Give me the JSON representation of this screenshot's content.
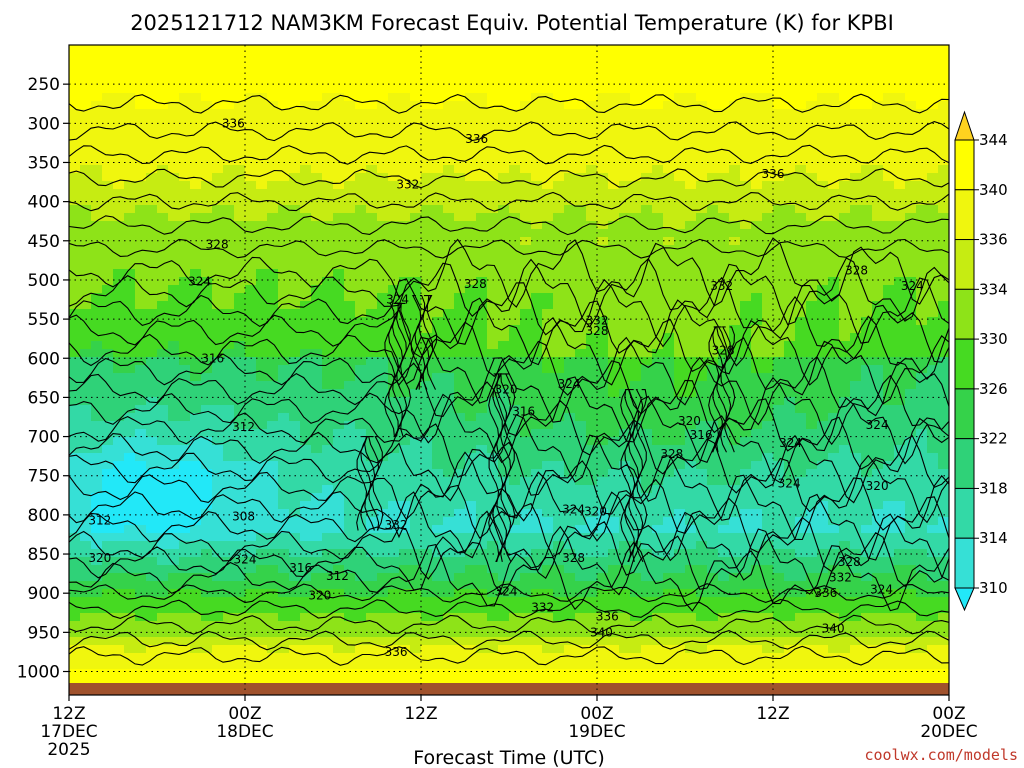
{
  "chart_data": {
    "type": "heatmap",
    "title": "2025121712 NAM3KM Forecast Equiv. Potential Temperature (K) for KPBI",
    "xlabel": "Forecast Time (UTC)",
    "ylabel": "",
    "x_ticks": [
      {
        "label": "12Z",
        "sub": "17DEC",
        "sub2": "2025",
        "hour": 0
      },
      {
        "label": "00Z",
        "sub": "18DEC",
        "sub2": "",
        "hour": 12
      },
      {
        "label": "12Z",
        "sub": "",
        "sub2": "",
        "hour": 24
      },
      {
        "label": "00Z",
        "sub": "19DEC",
        "sub2": "",
        "hour": 36
      },
      {
        "label": "12Z",
        "sub": "",
        "sub2": "",
        "hour": 48
      },
      {
        "label": "00Z",
        "sub": "20DEC",
        "sub2": "",
        "hour": 60
      }
    ],
    "xlim": [
      0,
      60
    ],
    "y_ticks": [
      250,
      300,
      350,
      400,
      450,
      500,
      550,
      600,
      650,
      700,
      750,
      800,
      850,
      900,
      950,
      1000
    ],
    "ylim": [
      200,
      1030
    ],
    "colorbar": {
      "levels": [
        310,
        314,
        318,
        322,
        326,
        330,
        334,
        336,
        340,
        344
      ],
      "colors": [
        "#22e8f8",
        "#36e0d6",
        "#33d9a6",
        "#2fd278",
        "#35d24a",
        "#46da22",
        "#8ee318",
        "#c6ec12",
        "#f0f60e",
        "#ffff00",
        "#ffd21f"
      ]
    },
    "contour_labels": [
      {
        "text": "336",
        "hour": 11.2,
        "p": 300
      },
      {
        "text": "336",
        "hour": 27.8,
        "p": 320
      },
      {
        "text": "336",
        "hour": 48.0,
        "p": 365
      },
      {
        "text": "332",
        "hour": 23.1,
        "p": 378
      },
      {
        "text": "328",
        "hour": 10.1,
        "p": 455
      },
      {
        "text": "324",
        "hour": 8.9,
        "p": 502
      },
      {
        "text": "324",
        "hour": 22.4,
        "p": 525
      },
      {
        "text": "328",
        "hour": 27.7,
        "p": 505
      },
      {
        "text": "332",
        "hour": 44.5,
        "p": 508
      },
      {
        "text": "328",
        "hour": 53.7,
        "p": 488
      },
      {
        "text": "324",
        "hour": 57.5,
        "p": 508
      },
      {
        "text": "316",
        "hour": 9.8,
        "p": 600
      },
      {
        "text": "332",
        "hour": 36.0,
        "p": 552
      },
      {
        "text": "328",
        "hour": 36.0,
        "p": 565
      },
      {
        "text": "328",
        "hour": 44.6,
        "p": 590
      },
      {
        "text": "312",
        "hour": 11.9,
        "p": 688
      },
      {
        "text": "320",
        "hour": 29.8,
        "p": 640
      },
      {
        "text": "324",
        "hour": 34.1,
        "p": 633
      },
      {
        "text": "316",
        "hour": 31.0,
        "p": 668
      },
      {
        "text": "320",
        "hour": 42.3,
        "p": 680
      },
      {
        "text": "316",
        "hour": 43.1,
        "p": 698
      },
      {
        "text": "328",
        "hour": 41.1,
        "p": 722
      },
      {
        "text": "324",
        "hour": 49.2,
        "p": 708
      },
      {
        "text": "324",
        "hour": 55.1,
        "p": 685
      },
      {
        "text": "324",
        "hour": 49.1,
        "p": 760
      },
      {
        "text": "320",
        "hour": 55.1,
        "p": 763
      },
      {
        "text": "312",
        "hour": 2.1,
        "p": 807
      },
      {
        "text": "308",
        "hour": 11.9,
        "p": 802
      },
      {
        "text": "332",
        "hour": 22.3,
        "p": 813
      },
      {
        "text": "324",
        "hour": 34.4,
        "p": 793
      },
      {
        "text": "320",
        "hour": 35.9,
        "p": 796
      },
      {
        "text": "320",
        "hour": 2.1,
        "p": 855
      },
      {
        "text": "324",
        "hour": 12.0,
        "p": 857
      },
      {
        "text": "316",
        "hour": 15.8,
        "p": 868
      },
      {
        "text": "312",
        "hour": 18.3,
        "p": 878
      },
      {
        "text": "320",
        "hour": 17.1,
        "p": 903
      },
      {
        "text": "328",
        "hour": 34.4,
        "p": 855
      },
      {
        "text": "324",
        "hour": 29.8,
        "p": 898
      },
      {
        "text": "332",
        "hour": 32.3,
        "p": 918
      },
      {
        "text": "336",
        "hour": 36.7,
        "p": 930
      },
      {
        "text": "340",
        "hour": 36.3,
        "p": 950
      },
      {
        "text": "336",
        "hour": 22.3,
        "p": 975
      },
      {
        "text": "328",
        "hour": 53.2,
        "p": 860
      },
      {
        "text": "332",
        "hour": 52.6,
        "p": 880
      },
      {
        "text": "336",
        "hour": 51.6,
        "p": 900
      },
      {
        "text": "324",
        "hour": 55.4,
        "p": 895
      },
      {
        "text": "340",
        "hour": 52.1,
        "p": 945
      }
    ],
    "grid": true
  },
  "footer": {
    "credit": "coolwx.com/models"
  }
}
